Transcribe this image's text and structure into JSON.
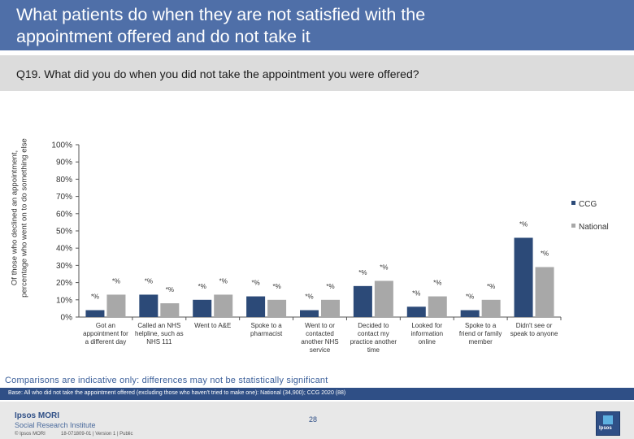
{
  "header": {
    "title_line1": "What patients do when they are not satisfied with the",
    "title_line2": "appointment offered and do not take it"
  },
  "question": "Q19. What did you do when you did not take the appointment you were offered?",
  "note": "Comparisons are indicative only: differences may not be statistically significant",
  "base": "Base: All who did not take the appointment offered (excluding those who haven't tried to make one): National (34,900); CCG 2020 (88)",
  "footer": {
    "brand_line1": "Ipsos MORI",
    "brand_line2": "Social Research Institute",
    "page_number": "28",
    "copyright": "© Ipsos MORI",
    "job": "18-071809-01 | Version 1 | Public",
    "logo_text": "Ipsos"
  },
  "chart_data": {
    "type": "bar",
    "ylabel": "Of those who declined an appointment, percentage who went on to do something else",
    "ylim": [
      0,
      100
    ],
    "yticks": [
      "0%",
      "10%",
      "20%",
      "30%",
      "40%",
      "50%",
      "60%",
      "70%",
      "80%",
      "90%",
      "100%"
    ],
    "categories": [
      [
        "Got an",
        "appointment for",
        "a different day"
      ],
      [
        "Called an NHS",
        "helpline, such as",
        "NHS 111"
      ],
      [
        "Went to A&E"
      ],
      [
        "Spoke to a",
        "pharmacist"
      ],
      [
        "Went to or",
        "contacted",
        "another NHS",
        "service"
      ],
      [
        "Decided to",
        "contact my",
        "practice another",
        "time"
      ],
      [
        "Looked for",
        "information",
        "online"
      ],
      [
        "Spoke to a",
        "friend or family",
        "member"
      ],
      [
        "Didn't see or",
        "speak to anyone"
      ]
    ],
    "series": [
      {
        "name": "CCG",
        "color": "#2c4a78",
        "values": [
          4,
          13,
          10,
          12,
          4,
          18,
          6,
          4,
          46
        ],
        "labels": [
          "*%",
          "*%",
          "*%",
          "*%",
          "*%",
          "*%",
          "*%",
          "*%",
          "*%"
        ]
      },
      {
        "name": "National",
        "color": "#a8a8a8",
        "values": [
          13,
          8,
          13,
          10,
          10,
          21,
          12,
          10,
          29
        ],
        "labels": [
          "*%",
          "*%",
          "*%",
          "*%",
          "*%",
          "*%",
          "*%",
          "*%",
          "*%"
        ]
      }
    ],
    "legend": {
      "position": "right",
      "items": [
        "CCG",
        "National"
      ]
    }
  }
}
